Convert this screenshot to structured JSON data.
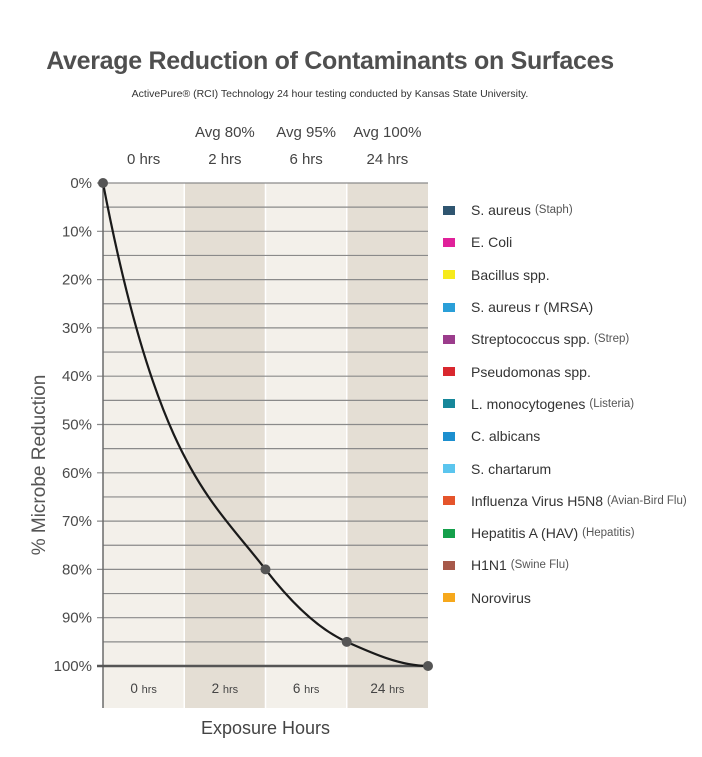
{
  "title": "Average Reduction of Contaminants on Surfaces",
  "subtitle": "ActivePure® (RCI) Technology 24 hour testing conducted by Kansas State University.",
  "legend": [
    {
      "name": "S. aureus",
      "note": "(Staph)",
      "color": "#2f5570"
    },
    {
      "name": "E. Coli",
      "note": "",
      "color": "#e0219a"
    },
    {
      "name": "Bacillus spp.",
      "note": "",
      "color": "#f6ea1c"
    },
    {
      "name": "S. aureus r (MRSA)",
      "note": "",
      "color": "#2a9fd8"
    },
    {
      "name": "Streptococcus spp.",
      "note": "(Strep)",
      "color": "#9b3c8c"
    },
    {
      "name": "Pseudomonas spp.",
      "note": "",
      "color": "#d9272e"
    },
    {
      "name": "L. monocytogenes",
      "note": "(Listeria)",
      "color": "#16879a"
    },
    {
      "name": "C. albicans",
      "note": "",
      "color": "#1c8fcf"
    },
    {
      "name": "S. chartarum",
      "note": "",
      "color": "#5bc5ee"
    },
    {
      "name": "Influenza Virus H5N8",
      "note": "(Avian-Bird Flu)",
      "color": "#e5542b"
    },
    {
      "name": "Hepatitis A (HAV)",
      "note": "(Hepatitis)",
      "color": "#14a04b"
    },
    {
      "name": "H1N1",
      "note": "(Swine Flu)",
      "color": "#a7594a"
    },
    {
      "name": "Norovirus",
      "note": "",
      "color": "#f6a81c"
    }
  ],
  "chart_data": {
    "type": "line",
    "title": "Average Reduction of Contaminants on Surfaces",
    "subtitle": "ActivePure® (RCI) Technology 24 hour testing conducted by Kansas State University.",
    "xlabel": "Exposure Hours",
    "ylabel": "% Microbe Reduction",
    "categories": [
      "0 hrs",
      "2 hrs",
      "6 hrs",
      "24 hrs"
    ],
    "column_headers": [
      {
        "avg": "",
        "time": "0 hrs"
      },
      {
        "avg": "Avg 80%",
        "time": "2 hrs"
      },
      {
        "avg": "Avg 95%",
        "time": "6 hrs"
      },
      {
        "avg": "Avg 100%",
        "time": "24 hrs"
      }
    ],
    "x_tick_labels": [
      "0",
      "2",
      "6",
      "24"
    ],
    "x_tick_unit": "hrs",
    "y_tick_labels": [
      "0%",
      "10%",
      "20%",
      "30%",
      "40%",
      "50%",
      "60%",
      "70%",
      "80%",
      "90%",
      "100%"
    ],
    "ylim": [
      0,
      100
    ],
    "y_inverted": true,
    "points": [
      {
        "x": "0 hrs",
        "y": 0
      },
      {
        "x": "2 hrs",
        "y": 80
      },
      {
        "x": "6 hrs",
        "y": 95
      },
      {
        "x": "24 hrs",
        "y": 100
      }
    ],
    "grid": true,
    "legend_position": "right",
    "colors": {
      "curve": "#1a1a1a",
      "marker": "#555555",
      "grid": "#8a8a8a",
      "band_light": "#f3f0ea",
      "band_dark": "#e4ded4"
    }
  }
}
